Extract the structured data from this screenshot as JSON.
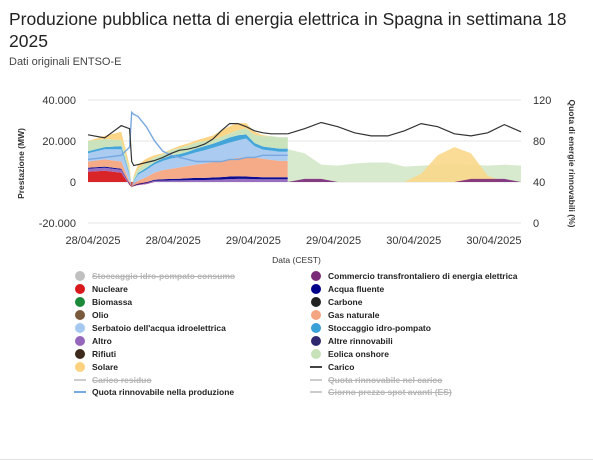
{
  "title": "Produzione pubblica netta di energia elettrica in Spagna in settimana 18 2025",
  "subtitle": "Dati originali ENTSO-E",
  "chart_data": {
    "type": "area",
    "ylabel_left": "Prestazione (MW)",
    "ylabel_right": "Quota di energie rinnovabili (%)",
    "xlabel": "Data (CEST)",
    "ylim_left": [
      -20000,
      40000
    ],
    "ylim_right": [
      0,
      120
    ],
    "yticks_left": [
      "40.000",
      "20.000",
      "0",
      "-20.000"
    ],
    "yticks_left_values": [
      40000,
      20000,
      0,
      -20000
    ],
    "yticks_right": [
      "120",
      "80",
      "40",
      "0"
    ],
    "yticks_right_values": [
      120,
      80,
      40,
      0
    ],
    "xticks": [
      "28/04/2025",
      "28/04/2025",
      "29/04/2025",
      "29/04/2025",
      "30/04/2025",
      "30/04/2025"
    ],
    "x_hours": [
      0,
      4,
      8,
      10,
      10.5,
      11,
      12,
      14,
      16,
      18,
      20,
      22,
      24,
      26,
      28,
      30,
      32,
      34,
      36,
      38,
      40,
      42,
      44,
      46,
      48
    ],
    "forecast_hours": [
      48,
      52,
      56,
      60,
      64,
      68,
      72,
      76,
      80,
      84,
      88,
      92,
      96,
      100,
      104
    ],
    "series": [
      {
        "name": "Nucleare",
        "color": "#d7191c",
        "values": [
          5000,
          5500,
          4500,
          -1500,
          -2500,
          -2000,
          -1500,
          -1000,
          0,
          0,
          0,
          0,
          0,
          0,
          0,
          0,
          0,
          0,
          0,
          0,
          0,
          0,
          0,
          0,
          0
        ]
      },
      {
        "name": "Altro",
        "color": "#9467bd",
        "values": [
          1500,
          1500,
          1500,
          300,
          0,
          200,
          300,
          500,
          600,
          700,
          800,
          800,
          900,
          1000,
          1000,
          1100,
          1200,
          1400,
          1500,
          1500,
          1400,
          1300,
          1300,
          1300,
          1300
        ]
      },
      {
        "name": "Acqua fluente",
        "color": "#00008b",
        "values": [
          500,
          500,
          500,
          300,
          0,
          200,
          300,
          400,
          500,
          600,
          700,
          800,
          900,
          1000,
          1000,
          1100,
          1200,
          1300,
          1300,
          1200,
          1100,
          1000,
          1000,
          1000,
          1000
        ]
      },
      {
        "name": "Gas naturale",
        "color": "#f4a582",
        "values": [
          3000,
          3500,
          3500,
          1000,
          0,
          500,
          1500,
          2500,
          3500,
          4500,
          5000,
          5500,
          6000,
          6500,
          7000,
          7500,
          8000,
          8500,
          9000,
          9500,
          9500,
          9000,
          8500,
          8000,
          8000
        ]
      },
      {
        "name": "Serbatoio dell'acqua idroelettrica",
        "color": "#a6c8f0",
        "values": [
          4000,
          5000,
          6000,
          3000,
          0,
          1500,
          3000,
          3500,
          4000,
          4500,
          5000,
          5000,
          5500,
          6000,
          6500,
          7000,
          7500,
          8000,
          8500,
          9000,
          5500,
          4500,
          4500,
          4500,
          4500
        ]
      },
      {
        "name": "Stoccaggio idro-pompato",
        "color": "#3aa0d8",
        "values": [
          1000,
          1000,
          1500,
          800,
          0,
          500,
          800,
          1000,
          1000,
          1200,
          1500,
          1500,
          1500,
          1800,
          2000,
          2000,
          2200,
          2500,
          2500,
          2000,
          1500,
          1500,
          1500,
          1500,
          1500
        ]
      },
      {
        "name": "Eolica onshore",
        "color": "#c7e2b8",
        "values": [
          5000,
          4000,
          3000,
          2000,
          0,
          1500,
          2000,
          2500,
          2500,
          2000,
          2500,
          3000,
          3000,
          3000,
          2500,
          2000,
          2000,
          2000,
          2500,
          3000,
          4000,
          5000,
          5500,
          5500,
          5500
        ]
      },
      {
        "name": "Solare",
        "color": "#fdd380",
        "values": [
          0,
          1500,
          4000,
          2000,
          0,
          1000,
          2000,
          2000,
          1000,
          500,
          500,
          1000,
          1000,
          1000,
          1500,
          2000,
          3000,
          3500,
          3500,
          2500,
          1500,
          500,
          0,
          0,
          0
        ]
      }
    ],
    "load": {
      "name": "Carico",
      "color": "#333333",
      "values": [
        23000,
        21500,
        27500,
        26000,
        10000,
        8000,
        8500,
        9500,
        10500,
        12000,
        14000,
        15500,
        16000,
        17000,
        18500,
        21000,
        25000,
        28500,
        28500,
        27000,
        25000,
        24000,
        23500,
        23500,
        23500
      ]
    },
    "load_forecast": {
      "name": "Carico",
      "color": "#333333",
      "values": [
        23500,
        26000,
        29000,
        27000,
        24000,
        22500,
        22500,
        25000,
        28500,
        27000,
        23500,
        22500,
        24000,
        28000,
        24500
      ]
    },
    "renewable_share": {
      "name": "Quota rinnovabile nella produzione",
      "color": "#77a8e0",
      "values": [
        62,
        64,
        66,
        74,
        108,
        106,
        104,
        94,
        80,
        70,
        66,
        64,
        62,
        60,
        60,
        60,
        60,
        62,
        62,
        64,
        64,
        66,
        66,
        66,
        66
      ]
    },
    "forecast_wind": {
      "name": "Eolica onshore",
      "color": "#d3e8c8",
      "values": [
        16000,
        14000,
        8500,
        8000,
        9000,
        9500,
        9500,
        7500,
        8000,
        8500,
        9000,
        8500,
        8000,
        8500,
        8000
      ]
    },
    "forecast_solar": {
      "name": "Solare",
      "color": "#fbd88c",
      "values": [
        0,
        0,
        0,
        0,
        0,
        0,
        0,
        0,
        4000,
        13000,
        17000,
        14000,
        3000,
        0,
        0
      ]
    },
    "forecast_other": {
      "name": "Commercio transfrontaliero di energia elettrica",
      "color": "#7b2a7a",
      "values": [
        0,
        1500,
        1500,
        0,
        0,
        0,
        0,
        0,
        0,
        0,
        0,
        1500,
        1500,
        1500,
        0
      ]
    },
    "legend_placement": "bottom",
    "grid": true
  },
  "legend": [
    {
      "label": "Stoccaggio idro-pompato consumo",
      "color": "#c0c0c0",
      "kind": "dot",
      "disabled": true
    },
    {
      "label": "Commercio transfrontaliero di energia elettrica",
      "color": "#7b2a7a",
      "kind": "dot",
      "disabled": false
    },
    {
      "label": "Nucleare",
      "color": "#d7191c",
      "kind": "dot",
      "disabled": false
    },
    {
      "label": "Acqua fluente",
      "color": "#00008b",
      "kind": "dot",
      "disabled": false
    },
    {
      "label": "Biomassa",
      "color": "#1a8a3a",
      "kind": "dot",
      "disabled": false
    },
    {
      "label": "Carbone",
      "color": "#222222",
      "kind": "dot",
      "disabled": false
    },
    {
      "label": "Olio",
      "color": "#7a5a3c",
      "kind": "dot",
      "disabled": false
    },
    {
      "label": "Gas naturale",
      "color": "#f4a582",
      "kind": "dot",
      "disabled": false
    },
    {
      "label": "Serbatoio dell'acqua idroelettrica",
      "color": "#a6c8f0",
      "kind": "dot",
      "disabled": false
    },
    {
      "label": "Stoccaggio idro-pompato",
      "color": "#3aa0d8",
      "kind": "dot",
      "disabled": false
    },
    {
      "label": "Altro",
      "color": "#9467bd",
      "kind": "dot",
      "disabled": false
    },
    {
      "label": "Altre rinnovabili",
      "color": "#2d2870",
      "kind": "dot",
      "disabled": false
    },
    {
      "label": "Rifiuti",
      "color": "#3e2a1a",
      "kind": "dot",
      "disabled": false
    },
    {
      "label": "Eolica onshore",
      "color": "#c7e2b8",
      "kind": "dot",
      "disabled": false
    },
    {
      "label": "Solare",
      "color": "#fdd380",
      "kind": "dot",
      "disabled": false
    },
    {
      "label": "Carico",
      "color": "#444444",
      "kind": "line",
      "disabled": false
    },
    {
      "label": "Carico residuo",
      "color": "#cccccc",
      "kind": "line",
      "disabled": true
    },
    {
      "label": "Quota rinnovabile nel carico",
      "color": "#cccccc",
      "kind": "line",
      "disabled": true
    },
    {
      "label": "Quota rinnovabile nella produzione",
      "color": "#77a8e0",
      "kind": "line",
      "disabled": false
    },
    {
      "label": "Giorno prezzo spot avanti (ES)",
      "color": "#cccccc",
      "kind": "line",
      "disabled": true
    }
  ]
}
